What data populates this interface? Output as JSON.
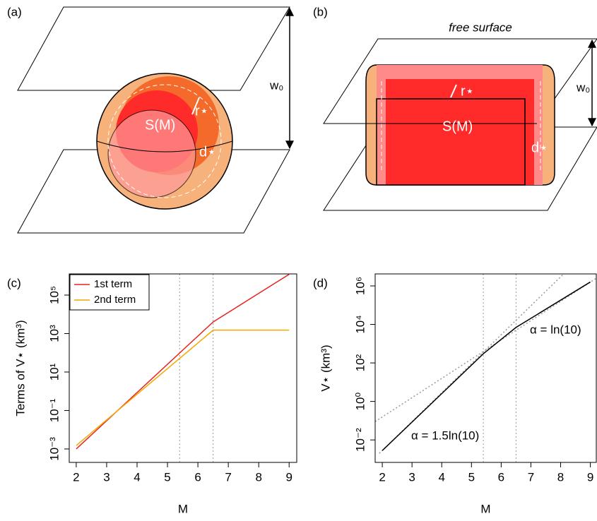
{
  "panels": {
    "a": {
      "label": "(a)",
      "height": "w₀",
      "radius": "r⋆",
      "depth": "d⋆",
      "source": "S(M)"
    },
    "b": {
      "label": "(b)",
      "caption": "free surface",
      "height": "w₀",
      "radius": "r⋆",
      "depth": "d⋆",
      "source": "S(M)"
    }
  },
  "chart_data": [
    {
      "type": "line",
      "label": "(c)",
      "xlabel": "M",
      "ylabel": "Terms of V⋆ (km³)",
      "log_y": true,
      "xlim": [
        1.77,
        9.25
      ],
      "ylim": [
        0.0002,
        1260000
      ],
      "xticks": [
        2,
        3,
        4,
        5,
        6,
        7,
        8,
        9
      ],
      "yticks": [
        {
          "value": 0.001,
          "label": "10⁻³"
        },
        {
          "value": 0.1,
          "label": "10⁻¹"
        },
        {
          "value": 10,
          "label": "10¹"
        },
        {
          "value": 1000,
          "label": "10³"
        },
        {
          "value": 100000,
          "label": "10⁵"
        }
      ],
      "vlines": [
        5.4,
        6.5
      ],
      "legend": "top-left",
      "series": [
        {
          "name": "1st term",
          "color": "#e8231f",
          "x": [
            2,
            6.5,
            9
          ],
          "values": [
            0.001,
            4000,
            1200000
          ]
        },
        {
          "name": "2nd term",
          "color": "#f2a900",
          "x": [
            2,
            6.5,
            9
          ],
          "values": [
            0.0015,
            1500,
            1500
          ]
        }
      ]
    },
    {
      "type": "line",
      "label": "(d)",
      "xlabel": "M",
      "ylabel": "V⋆ (km³)",
      "log_y": true,
      "xlim": [
        1.76,
        9.2
      ],
      "ylim": [
        0.00068,
        4200000
      ],
      "xticks": [
        2,
        3,
        4,
        5,
        6,
        7,
        8,
        9
      ],
      "yticks": [
        {
          "value": 0.01,
          "label": "10⁻²"
        },
        {
          "value": 1,
          "label": "10⁰"
        },
        {
          "value": 100,
          "label": "10²"
        },
        {
          "value": 10000,
          "label": "10⁴"
        },
        {
          "value": 1000000,
          "label": "10⁶"
        }
      ],
      "vlines": [
        5.4,
        6.5
      ],
      "series": [
        {
          "color": "#000000",
          "x": [
            2,
            5.4,
            6.5,
            9
          ],
          "values": [
            0.0028,
            300,
            7000,
            1600000
          ]
        }
      ],
      "ref_lines": [
        {
          "label": "α = 1.5ln(10)",
          "color": "#999999",
          "x": [
            1.9,
            8.1
          ],
          "values": [
            0.002,
            4200000
          ]
        },
        {
          "label": "α = ln(10)",
          "color": "#999999",
          "x": [
            1.76,
            9.2
          ],
          "values": [
            0.09,
            2500000
          ]
        }
      ]
    }
  ]
}
